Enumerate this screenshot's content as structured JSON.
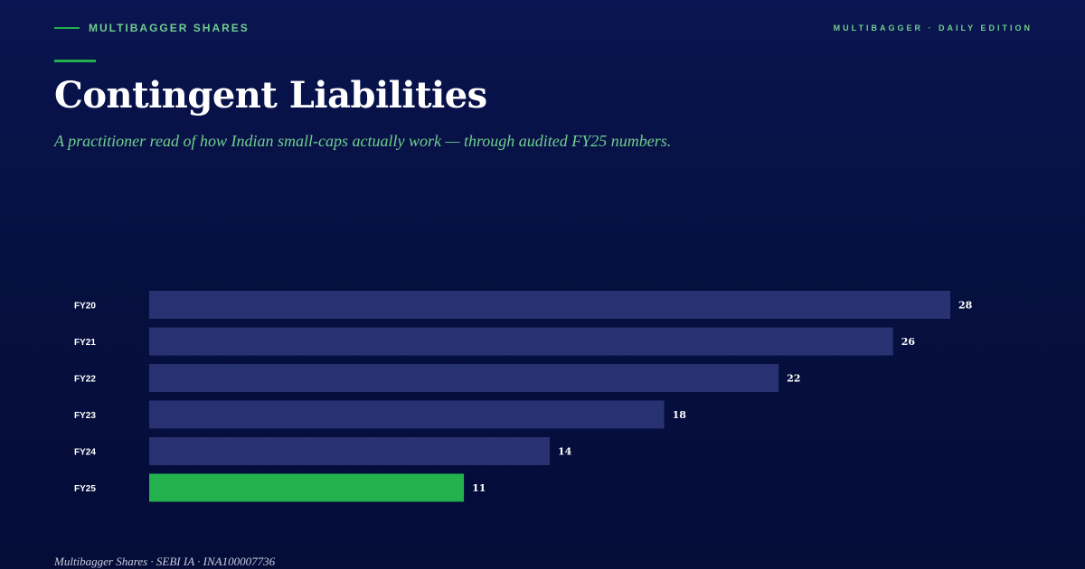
{
  "header": {
    "brand": "MULTIBAGGER SHARES",
    "edition": "MULTIBAGGER · DAILY EDITION",
    "title": "Contingent Liabilities",
    "subtitle": "A practitioner read of how Indian small-caps actually work — through audited FY25 numbers."
  },
  "footer": {
    "text": "Multibagger Shares · SEBI IA · INA100007736"
  },
  "colors": {
    "bar": "#283272",
    "highlight": "#22b14c",
    "label": "#ffffff"
  },
  "chart_data": {
    "type": "bar",
    "orientation": "horizontal",
    "categories": [
      "FY20",
      "FY21",
      "FY22",
      "FY23",
      "FY24",
      "FY25"
    ],
    "values": [
      28,
      26,
      22,
      18,
      14,
      11
    ],
    "highlight_category": "FY25",
    "xlim": [
      0,
      28
    ],
    "grid": false,
    "legend": "none",
    "title": "",
    "xlabel": "",
    "ylabel": ""
  }
}
